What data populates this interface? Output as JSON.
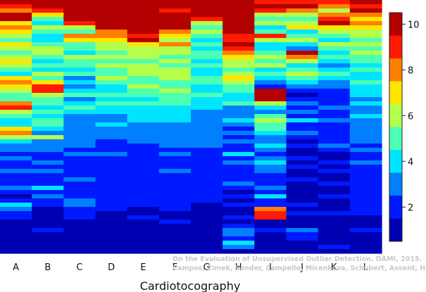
{
  "chart_data": {
    "type": "heatmap",
    "xlabel": "Cardiotocography",
    "categories": [
      "A",
      "B",
      "C",
      "D",
      "E",
      "F",
      "G",
      "H",
      "I",
      "J",
      "K",
      "L"
    ],
    "colorbar": {
      "ticks": [
        2,
        4,
        6,
        8,
        10
      ],
      "range": [
        0.5,
        10.5
      ],
      "colormap": "jet"
    },
    "rows": 60,
    "orientation": "each column is a vertical stack of colored horizontal bands; value per band (top to bottom)",
    "columns": [
      {
        "name": "A",
        "values": [
          10,
          9,
          8,
          10,
          10,
          7,
          8,
          7,
          6,
          5,
          7,
          6,
          5,
          6,
          7,
          6,
          5,
          4,
          7,
          8,
          7,
          6,
          5,
          5,
          8,
          9,
          6,
          5,
          4,
          4,
          7,
          8,
          6,
          4,
          3,
          3,
          2,
          3,
          2,
          2,
          3,
          2,
          2,
          2,
          3,
          2,
          1,
          2,
          4,
          3,
          2,
          2,
          1,
          1,
          1,
          1,
          1,
          1,
          1,
          1
        ]
      },
      {
        "name": "B",
        "values": [
          10,
          10,
          9,
          7,
          5,
          4,
          6,
          5,
          4,
          4,
          5,
          6,
          6,
          5,
          4,
          5,
          4,
          6,
          5,
          7,
          9,
          9,
          6,
          5,
          5,
          4,
          5,
          4,
          5,
          5,
          4,
          3,
          6,
          3,
          3,
          3,
          2,
          2,
          3,
          2,
          3,
          2,
          2,
          2,
          4,
          2,
          3,
          2,
          2,
          1,
          1,
          1,
          1,
          1,
          2,
          1,
          1,
          1,
          1,
          1
        ]
      },
      {
        "name": "C",
        "values": [
          10,
          10,
          10,
          10,
          10,
          9,
          6,
          5,
          8,
          7,
          5,
          5,
          4,
          6,
          5,
          5,
          4,
          5,
          3,
          4,
          3,
          4,
          5,
          3,
          4,
          5,
          4,
          3,
          3,
          3,
          3,
          3,
          3,
          3,
          3,
          2,
          3,
          2,
          2,
          2,
          2,
          2,
          3,
          2,
          2,
          2,
          2,
          3,
          3,
          2,
          2,
          2,
          1,
          1,
          1,
          1,
          1,
          1,
          1,
          1
        ]
      },
      {
        "name": "D",
        "values": [
          10,
          10,
          10,
          10,
          10,
          10,
          10,
          8,
          8,
          7,
          6,
          6,
          5,
          6,
          5,
          6,
          5,
          5,
          6,
          5,
          4,
          4,
          5,
          4,
          5,
          4,
          4,
          3,
          3,
          4,
          3,
          3,
          3,
          2,
          2,
          2,
          3,
          2,
          2,
          2,
          2,
          2,
          2,
          2,
          2,
          2,
          2,
          2,
          2,
          2,
          1,
          1,
          1,
          1,
          1,
          1,
          1,
          1,
          1,
          1
        ]
      },
      {
        "name": "E",
        "values": [
          10,
          10,
          10,
          10,
          10,
          10,
          10,
          10,
          9,
          10,
          7,
          6,
          6,
          6,
          5,
          6,
          6,
          6,
          5,
          5,
          6,
          5,
          5,
          4,
          5,
          4,
          4,
          4,
          4,
          3,
          3,
          3,
          3,
          3,
          2,
          2,
          2,
          2,
          2,
          2,
          2,
          2,
          2,
          2,
          2,
          2,
          2,
          2,
          2,
          1,
          1,
          2,
          1,
          1,
          1,
          1,
          1,
          1,
          1,
          1
        ]
      },
      {
        "name": "F",
        "values": [
          10,
          10,
          9,
          10,
          10,
          10,
          10,
          8,
          7,
          6,
          8,
          6,
          6,
          5,
          6,
          5,
          6,
          6,
          6,
          5,
          5,
          6,
          5,
          5,
          5,
          4,
          4,
          4,
          4,
          3,
          3,
          3,
          3,
          3,
          3,
          2,
          3,
          2,
          2,
          2,
          3,
          2,
          2,
          2,
          2,
          2,
          2,
          2,
          2,
          2,
          1,
          1,
          2,
          1,
          1,
          1,
          1,
          1,
          1,
          1
        ]
      },
      {
        "name": "G",
        "values": [
          10,
          10,
          10,
          10,
          9,
          6,
          5,
          6,
          5,
          4,
          5,
          4,
          5,
          5,
          4,
          5,
          4,
          4,
          5,
          5,
          4,
          4,
          5,
          4,
          4,
          4,
          3,
          3,
          3,
          3,
          3,
          3,
          3,
          3,
          3,
          2,
          2,
          2,
          2,
          2,
          2,
          2,
          2,
          2,
          2,
          2,
          2,
          2,
          1,
          1,
          1,
          1,
          1,
          1,
          1,
          1,
          1,
          1,
          1,
          1
        ]
      },
      {
        "name": "H",
        "values": [
          10,
          10,
          10,
          10,
          10,
          10,
          10,
          10,
          9,
          9,
          10,
          9,
          8,
          7,
          6,
          6,
          5,
          6,
          7,
          6,
          5,
          5,
          4,
          4,
          5,
          3,
          3,
          3,
          4,
          3,
          2,
          3,
          2,
          3,
          2,
          2,
          4,
          2,
          3,
          2,
          2,
          2,
          2,
          3,
          2,
          1,
          2,
          1,
          2,
          1,
          1,
          2,
          1,
          2,
          3,
          3,
          2,
          4,
          3,
          1
        ]
      },
      {
        "name": "I",
        "values": [
          9,
          10,
          9,
          6,
          5,
          6,
          4,
          5,
          9,
          6,
          4,
          4,
          5,
          6,
          5,
          6,
          4,
          5,
          4,
          3,
          2,
          10,
          10,
          10,
          6,
          4,
          3,
          5,
          6,
          5,
          5,
          4,
          3,
          3,
          4,
          3,
          2,
          3,
          4,
          3,
          3,
          2,
          2,
          2,
          3,
          2,
          4,
          2,
          2,
          8,
          9,
          9,
          1,
          1,
          2,
          1,
          1,
          1,
          1,
          1
        ]
      },
      {
        "name": "J",
        "values": [
          9,
          10,
          8,
          6,
          5,
          6,
          7,
          4,
          5,
          6,
          4,
          3,
          10,
          8,
          6,
          4,
          5,
          6,
          5,
          4,
          3,
          2,
          1,
          2,
          3,
          2,
          3,
          2,
          4,
          2,
          2,
          3,
          2,
          1,
          2,
          1,
          1,
          2,
          1,
          2,
          1,
          1,
          2,
          1,
          1,
          1,
          1,
          1,
          2,
          1,
          2,
          1,
          1,
          1,
          3,
          2,
          2,
          1,
          1,
          1
        ]
      },
      {
        "name": "K",
        "values": [
          9,
          8,
          6,
          8,
          9,
          10,
          7,
          6,
          5,
          4,
          6,
          5,
          4,
          5,
          4,
          3,
          4,
          5,
          4,
          3,
          3,
          2,
          2,
          2,
          2,
          3,
          2,
          2,
          3,
          2,
          2,
          2,
          2,
          2,
          3,
          2,
          1,
          1,
          2,
          1,
          2,
          1,
          1,
          2,
          1,
          1,
          2,
          1,
          1,
          1,
          2,
          1,
          1,
          1,
          1,
          1,
          1,
          1,
          2,
          1
        ]
      },
      {
        "name": "L",
        "values": [
          10,
          9,
          10,
          8,
          7,
          8,
          7,
          6,
          6,
          5,
          6,
          5,
          6,
          5,
          5,
          4,
          5,
          4,
          4,
          5,
          4,
          4,
          4,
          3,
          4,
          3,
          3,
          4,
          3,
          3,
          3,
          3,
          3,
          3,
          2,
          3,
          2,
          2,
          3,
          2,
          2,
          2,
          2,
          2,
          2,
          2,
          2,
          2,
          2,
          2,
          2,
          1,
          1,
          1,
          2,
          1,
          1,
          1,
          1,
          1
        ]
      }
    ],
    "watermark": [
      "On the Evaluation of Unsupervised Outlier Detection. DAMI, 2015.",
      "Campos, Zimek, Sander, Campello, Micenkova, Schubert, Assent, Houle"
    ]
  }
}
